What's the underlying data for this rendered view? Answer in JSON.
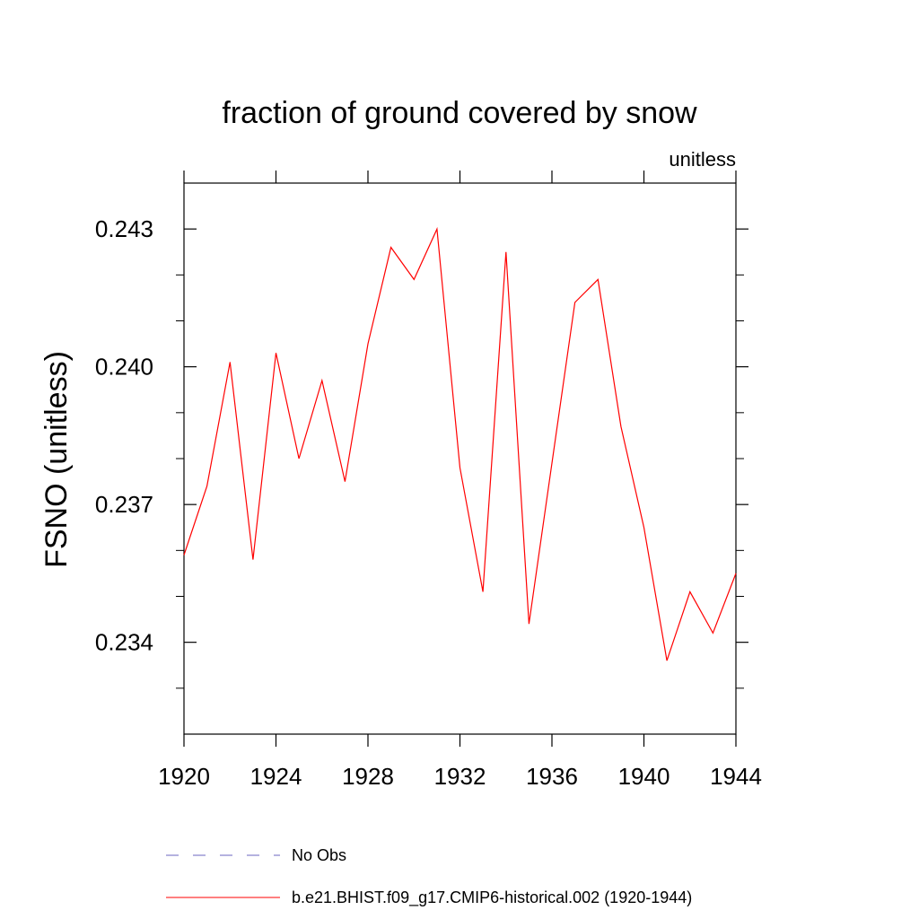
{
  "chart_data": {
    "type": "line",
    "title": "fraction of ground covered by snow",
    "units_label": "unitless",
    "ylabel": "FSNO  (unitless)",
    "xlabel": "",
    "xlim": [
      1920,
      1944
    ],
    "ylim": [
      0.232,
      0.244
    ],
    "x_ticks": [
      1920,
      1924,
      1928,
      1932,
      1936,
      1940,
      1944
    ],
    "x_tick_labels": [
      "1920",
      "1924",
      "1928",
      "1932",
      "1936",
      "1940",
      "1944"
    ],
    "y_ticks": [
      0.234,
      0.237,
      0.24,
      0.243
    ],
    "y_tick_labels": [
      "0.234",
      "0.237",
      "0.240",
      "0.243"
    ],
    "y_minor_step": 0.001,
    "grid": false,
    "series": [
      {
        "name": "b.e21.BHIST.f09_g17.CMIP6-historical.002 (1920-1944)",
        "color": "#ff0000",
        "x": [
          1920,
          1921,
          1922,
          1923,
          1924,
          1925,
          1926,
          1927,
          1928,
          1929,
          1930,
          1931,
          1932,
          1933,
          1934,
          1935,
          1936,
          1937,
          1938,
          1939,
          1940,
          1941,
          1942,
          1943,
          1944
        ],
        "values": [
          0.2359,
          0.2374,
          0.2401,
          0.2358,
          0.2403,
          0.238,
          0.2397,
          0.2375,
          0.2405,
          0.2426,
          0.2419,
          0.243,
          0.2378,
          0.2351,
          0.2425,
          0.2344,
          0.2379,
          0.2414,
          0.2419,
          0.2387,
          0.2365,
          0.2336,
          0.2351,
          0.2342,
          0.2355
        ]
      }
    ],
    "legend": [
      {
        "label": "No Obs",
        "color": "#6b66c2",
        "style": "dashed"
      },
      {
        "label": "b.e21.BHIST.f09_g17.CMIP6-historical.002 (1920-1944)",
        "color": "#ff0000",
        "style": "solid"
      }
    ]
  }
}
